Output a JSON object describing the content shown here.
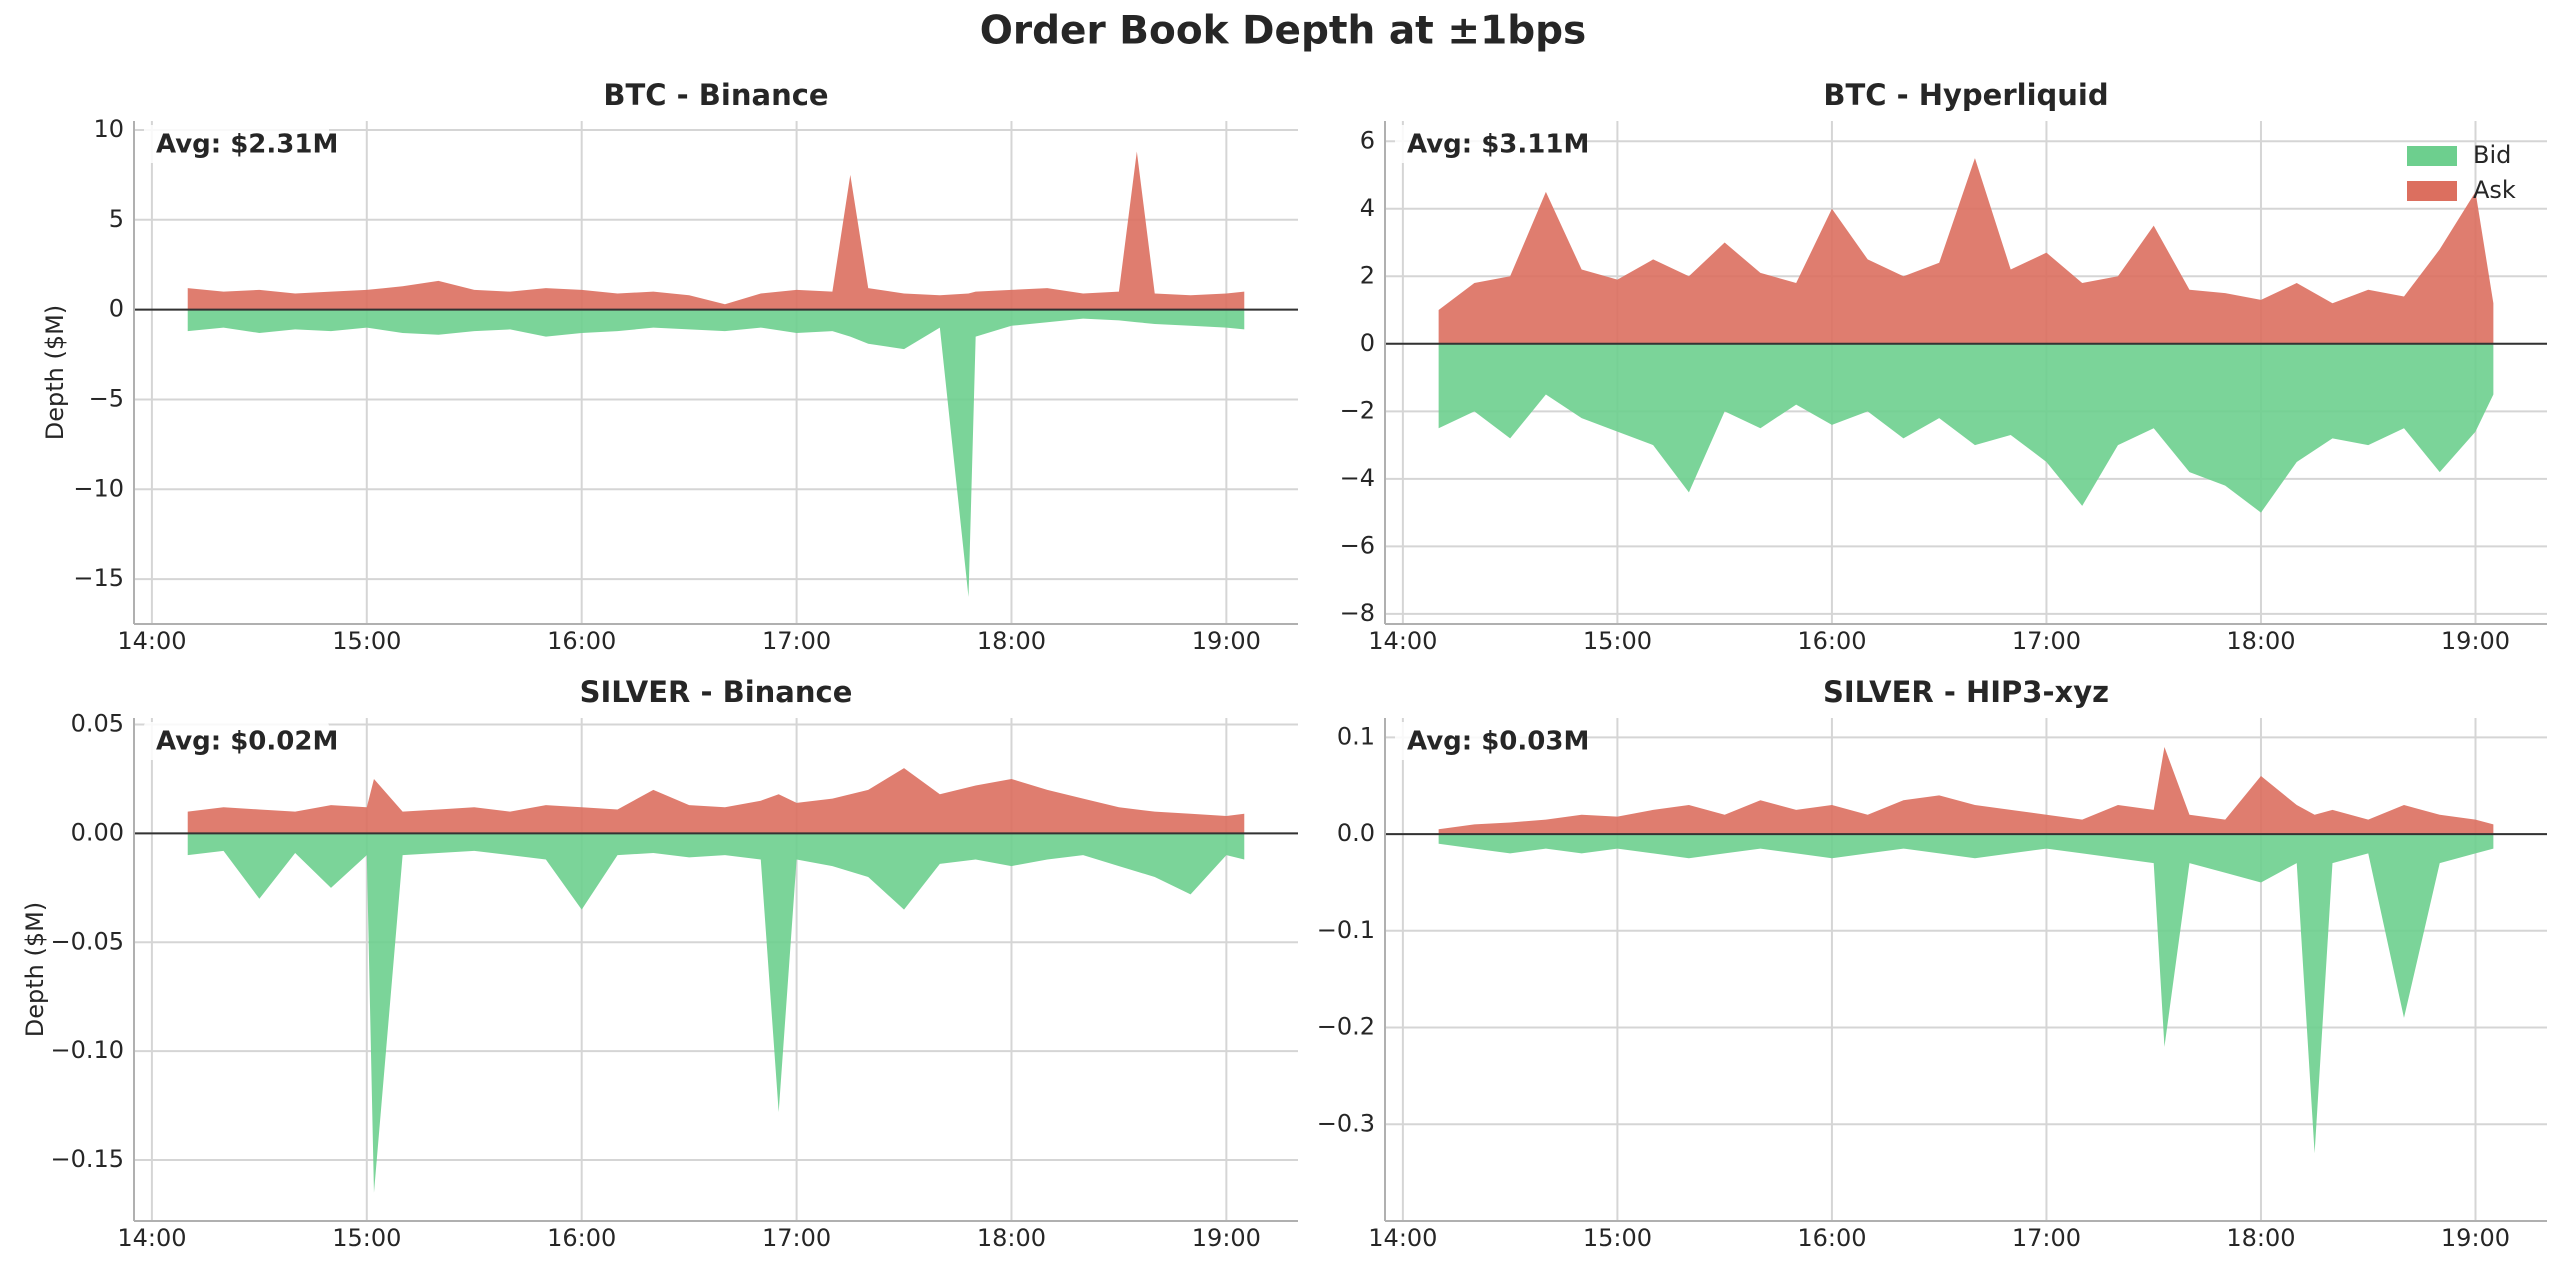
{
  "title": "Order Book Depth at ±1bps",
  "chart_data": [
    {
      "type": "area",
      "title": "BTC - Binance",
      "ylabel": "Depth ($M)",
      "annotation": "Avg: $2.31M",
      "x": [
        "14:10",
        "14:20",
        "14:30",
        "14:40",
        "14:50",
        "15:00",
        "15:10",
        "15:20",
        "15:30",
        "15:40",
        "15:50",
        "16:00",
        "16:10",
        "16:20",
        "16:30",
        "16:40",
        "16:50",
        "17:00",
        "17:10",
        "17:15",
        "17:20",
        "17:30",
        "17:40",
        "17:48",
        "17:50",
        "18:00",
        "18:10",
        "18:20",
        "18:30",
        "18:35",
        "18:40",
        "18:50",
        "19:00",
        "19:05"
      ],
      "series": [
        {
          "name": "Bid",
          "color": "#6dcf8e",
          "values": [
            -1.2,
            -1.0,
            -1.3,
            -1.1,
            -1.2,
            -1.0,
            -1.3,
            -1.4,
            -1.2,
            -1.1,
            -1.5,
            -1.3,
            -1.2,
            -1.0,
            -1.1,
            -1.2,
            -1.0,
            -1.3,
            -1.2,
            -1.5,
            -1.9,
            -2.2,
            -1.0,
            -16,
            -1.5,
            -0.9,
            -0.7,
            -0.5,
            -0.6,
            -0.7,
            -0.8,
            -0.9,
            -1.0,
            -1.1
          ]
        },
        {
          "name": "Ask",
          "color": "#dc6f5f",
          "values": [
            1.2,
            1.0,
            1.1,
            0.9,
            1.0,
            1.1,
            1.3,
            1.6,
            1.1,
            1.0,
            1.2,
            1.1,
            0.9,
            1.0,
            0.8,
            0.3,
            0.9,
            1.1,
            1.0,
            7.5,
            1.2,
            0.9,
            0.8,
            0.9,
            1.0,
            1.1,
            1.2,
            0.9,
            1.0,
            8.8,
            0.9,
            0.8,
            0.9,
            1.0
          ]
        }
      ],
      "xlim": [
        "13:55",
        "19:20"
      ],
      "xticks": [
        "14:00",
        "15:00",
        "16:00",
        "17:00",
        "18:00",
        "19:00"
      ],
      "ylim": [
        -17.5,
        10.5
      ],
      "yticks": [
        {
          "value": -15,
          "label": "−15"
        },
        {
          "value": -10,
          "label": "−10"
        },
        {
          "value": -5,
          "label": "−5"
        },
        0,
        5,
        10
      ],
      "grid": true
    },
    {
      "type": "area",
      "title": "BTC - Hyperliquid",
      "annotation": "Avg: $3.11M",
      "legend": "upper right",
      "x": [
        "14:10",
        "14:20",
        "14:30",
        "14:40",
        "14:50",
        "15:00",
        "15:10",
        "15:20",
        "15:30",
        "15:40",
        "15:50",
        "16:00",
        "16:10",
        "16:20",
        "16:30",
        "16:40",
        "16:50",
        "17:00",
        "17:10",
        "17:20",
        "17:30",
        "17:40",
        "17:50",
        "18:00",
        "18:10",
        "18:20",
        "18:30",
        "18:40",
        "18:50",
        "19:00",
        "19:05"
      ],
      "series": [
        {
          "name": "Bid",
          "color": "#6dcf8e",
          "values": [
            -2.5,
            -2.0,
            -2.8,
            -1.5,
            -2.2,
            -2.6,
            -3.0,
            -4.4,
            -2.0,
            -2.5,
            -1.8,
            -2.4,
            -2.0,
            -2.8,
            -2.2,
            -3.0,
            -2.7,
            -3.5,
            -4.8,
            -3.0,
            -2.5,
            -3.8,
            -4.2,
            -5.0,
            -3.5,
            -2.8,
            -3.0,
            -2.5,
            -3.8,
            -2.6,
            -1.5
          ]
        },
        {
          "name": "Ask",
          "color": "#dc6f5f",
          "values": [
            1.0,
            1.8,
            2.0,
            4.5,
            2.2,
            1.9,
            2.5,
            2.0,
            3.0,
            2.1,
            1.8,
            4.0,
            2.5,
            2.0,
            2.4,
            5.5,
            2.2,
            2.7,
            1.8,
            2.0,
            3.5,
            1.6,
            1.5,
            1.3,
            1.8,
            1.2,
            1.6,
            1.4,
            2.8,
            4.5,
            1.2
          ]
        }
      ],
      "xlim": [
        "13:55",
        "19:20"
      ],
      "xticks": [
        "14:00",
        "15:00",
        "16:00",
        "17:00",
        "18:00",
        "19:00"
      ],
      "ylim": [
        -8.3,
        6.6
      ],
      "yticks": [
        {
          "value": -8,
          "label": "−8"
        },
        {
          "value": -6,
          "label": "−6"
        },
        {
          "value": -4,
          "label": "−4"
        },
        {
          "value": -2,
          "label": "−2"
        },
        0,
        2,
        4,
        6
      ],
      "grid": true
    },
    {
      "type": "area",
      "title": "SILVER - Binance",
      "ylabel": "Depth ($M)",
      "annotation": "Avg: $0.02M",
      "x": [
        "14:10",
        "14:20",
        "14:30",
        "14:40",
        "14:50",
        "15:00",
        "15:02",
        "15:10",
        "15:20",
        "15:30",
        "15:40",
        "15:50",
        "16:00",
        "16:10",
        "16:20",
        "16:30",
        "16:40",
        "16:50",
        "16:55",
        "17:00",
        "17:10",
        "17:20",
        "17:30",
        "17:40",
        "17:50",
        "18:00",
        "18:10",
        "18:20",
        "18:30",
        "18:40",
        "18:50",
        "19:00",
        "19:05"
      ],
      "series": [
        {
          "name": "Bid",
          "color": "#6dcf8e",
          "values": [
            -0.01,
            -0.008,
            -0.03,
            -0.009,
            -0.025,
            -0.01,
            -0.165,
            -0.01,
            -0.009,
            -0.008,
            -0.01,
            -0.012,
            -0.035,
            -0.01,
            -0.009,
            -0.011,
            -0.01,
            -0.012,
            -0.128,
            -0.012,
            -0.015,
            -0.02,
            -0.035,
            -0.014,
            -0.012,
            -0.015,
            -0.012,
            -0.01,
            -0.015,
            -0.02,
            -0.028,
            -0.01,
            -0.012
          ]
        },
        {
          "name": "Ask",
          "color": "#dc6f5f",
          "values": [
            0.01,
            0.012,
            0.011,
            0.01,
            0.013,
            0.012,
            0.025,
            0.01,
            0.011,
            0.012,
            0.01,
            0.013,
            0.012,
            0.011,
            0.02,
            0.013,
            0.012,
            0.015,
            0.018,
            0.014,
            0.016,
            0.02,
            0.03,
            0.018,
            0.022,
            0.025,
            0.02,
            0.016,
            0.012,
            0.01,
            0.009,
            0.008,
            0.009
          ]
        }
      ],
      "xlim": [
        "13:55",
        "19:20"
      ],
      "xticks": [
        "14:00",
        "15:00",
        "16:00",
        "17:00",
        "18:00",
        "19:00"
      ],
      "ylim": [
        -0.178,
        0.053
      ],
      "yticks": [
        {
          "value": -0.15,
          "label": "−0.15"
        },
        {
          "value": -0.1,
          "label": "−0.10"
        },
        {
          "value": -0.05,
          "label": "−0.05"
        },
        {
          "value": 0,
          "label": "0.00"
        },
        0.05
      ],
      "grid": true
    },
    {
      "type": "area",
      "title": "SILVER - HIP3-xyz",
      "annotation": "Avg: $0.03M",
      "x": [
        "14:10",
        "14:20",
        "14:30",
        "14:40",
        "14:50",
        "15:00",
        "15:10",
        "15:20",
        "15:30",
        "15:40",
        "15:50",
        "16:00",
        "16:10",
        "16:20",
        "16:30",
        "16:40",
        "16:50",
        "17:00",
        "17:10",
        "17:20",
        "17:30",
        "17:33",
        "17:40",
        "17:50",
        "18:00",
        "18:10",
        "18:15",
        "18:20",
        "18:30",
        "18:40",
        "18:50",
        "19:00",
        "19:05"
      ],
      "series": [
        {
          "name": "Bid",
          "color": "#6dcf8e",
          "values": [
            -0.01,
            -0.015,
            -0.02,
            -0.015,
            -0.02,
            -0.015,
            -0.02,
            -0.025,
            -0.02,
            -0.015,
            -0.02,
            -0.025,
            -0.02,
            -0.015,
            -0.02,
            -0.025,
            -0.02,
            -0.015,
            -0.02,
            -0.025,
            -0.03,
            -0.22,
            -0.03,
            -0.04,
            -0.05,
            -0.03,
            -0.33,
            -0.03,
            -0.02,
            -0.19,
            -0.03,
            -0.02,
            -0.015
          ]
        },
        {
          "name": "Ask",
          "color": "#dc6f5f",
          "values": [
            0.005,
            0.01,
            0.012,
            0.015,
            0.02,
            0.018,
            0.025,
            0.03,
            0.02,
            0.035,
            0.025,
            0.03,
            0.02,
            0.035,
            0.04,
            0.03,
            0.025,
            0.02,
            0.015,
            0.03,
            0.025,
            0.09,
            0.02,
            0.015,
            0.06,
            0.03,
            0.02,
            0.025,
            0.015,
            0.03,
            0.02,
            0.015,
            0.01
          ]
        }
      ],
      "xlim": [
        "13:55",
        "19:20"
      ],
      "xticks": [
        "14:00",
        "15:00",
        "16:00",
        "17:00",
        "18:00",
        "19:00"
      ],
      "ylim": [
        -0.4,
        0.12
      ],
      "yticks": [
        {
          "value": -0.3,
          "label": "−0.3"
        },
        {
          "value": -0.2,
          "label": "−0.2"
        },
        {
          "value": -0.1,
          "label": "−0.1"
        },
        {
          "value": 0,
          "label": "0.0"
        },
        0.1
      ],
      "grid": true
    }
  ]
}
